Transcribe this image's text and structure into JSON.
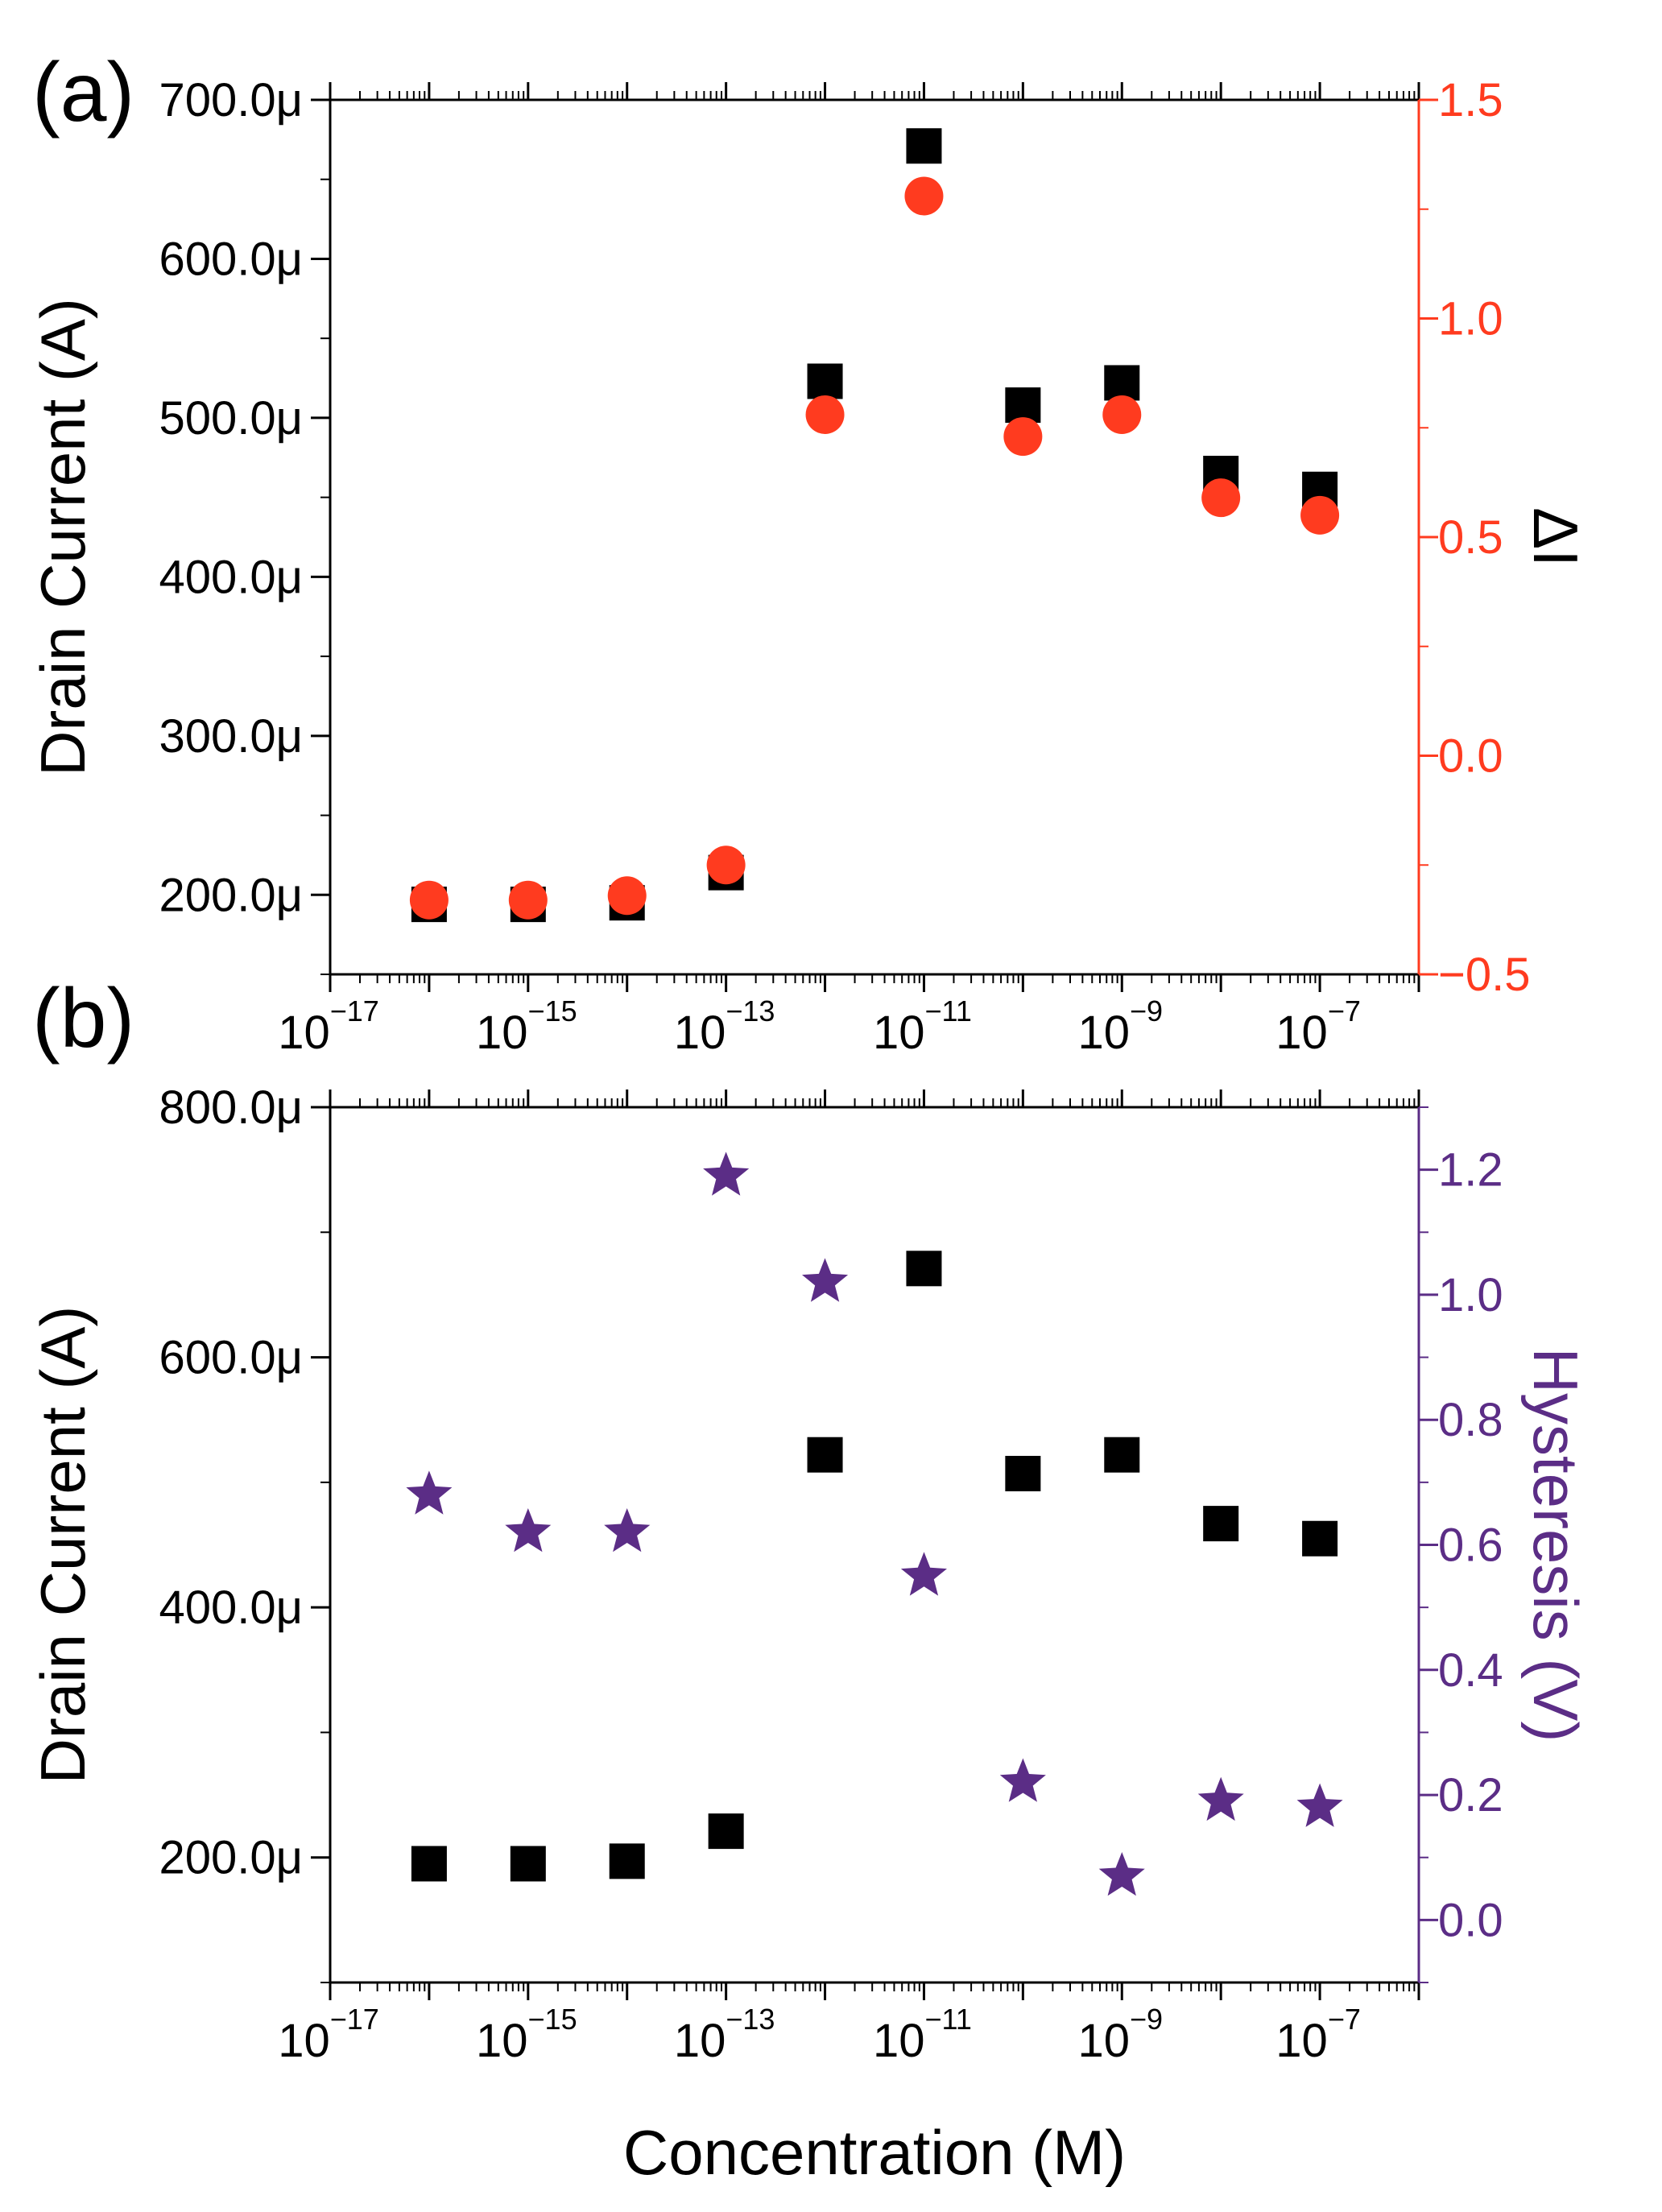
{
  "chart_data": [
    {
      "type": "scatter",
      "panel_label": "(a)",
      "xscale": "log",
      "xlim_exponent": [
        -17,
        -6
      ],
      "xtick_base": "10",
      "xtick_exponents": [
        "−17",
        "−15",
        "−13",
        "−11",
        "−9",
        "−7"
      ],
      "ylabel": "Drain Current (A)",
      "ylim": [
        150,
        700
      ],
      "yticks": [
        "200.0μ",
        "300.0μ",
        "400.0μ",
        "500.0μ",
        "600.0μ",
        "700.0μ"
      ],
      "ytick_values": [
        200,
        300,
        400,
        500,
        600,
        700
      ],
      "y2label": "ΔI",
      "y2lim": [
        -0.5,
        1.5
      ],
      "y2ticks": [
        "−0.5",
        "0.0",
        "0.5",
        "1.0",
        "1.5"
      ],
      "y2tick_values": [
        -0.5,
        0.0,
        0.5,
        1.0,
        1.5
      ],
      "y2color": "#ff3b1f",
      "series": [
        {
          "name": "Drain Current",
          "axis": "left",
          "marker": "square",
          "color": "#000000",
          "x_exponent": [
            -16,
            -15,
            -14,
            -13,
            -12,
            -11,
            -10,
            -9,
            -8,
            -7
          ],
          "values": [
            194,
            194,
            195,
            214,
            523,
            671,
            508,
            522,
            465,
            455
          ]
        },
        {
          "name": "ΔI",
          "axis": "right",
          "marker": "circle",
          "color": "#ff3b1f",
          "x_exponent": [
            -16,
            -15,
            -14,
            -13,
            -12,
            -11,
            -10,
            -9,
            -8,
            -7
          ],
          "values": [
            -0.33,
            -0.33,
            -0.32,
            -0.25,
            0.78,
            1.28,
            0.73,
            0.78,
            0.59,
            0.55
          ]
        }
      ]
    },
    {
      "type": "scatter",
      "panel_label": "(b)",
      "xscale": "log",
      "xlim_exponent": [
        -17,
        -6
      ],
      "xtick_base": "10",
      "xtick_exponents": [
        "−17",
        "−15",
        "−13",
        "−11",
        "−9",
        "−7"
      ],
      "xlabel": "Concentration (M)",
      "ylabel": "Drain Current (A)",
      "ylim": [
        100,
        800
      ],
      "yticks": [
        "200.0μ",
        "400.0μ",
        "600.0μ",
        "800.0μ"
      ],
      "ytick_values": [
        200,
        400,
        600,
        800
      ],
      "y2label": "Hysteresis (V)",
      "y2lim": [
        -0.1,
        1.3
      ],
      "y2ticks": [
        "0.0",
        "0.2",
        "0.4",
        "0.6",
        "0.8",
        "1.0",
        "1.2"
      ],
      "y2tick_values": [
        0.0,
        0.2,
        0.4,
        0.6,
        0.8,
        1.0,
        1.2
      ],
      "y2color": "#5b2d86",
      "series": [
        {
          "name": "Drain Current",
          "axis": "left",
          "marker": "square",
          "color": "#000000",
          "x_exponent": [
            -16,
            -15,
            -14,
            -13,
            -12,
            -11,
            -10,
            -9,
            -8,
            -7
          ],
          "values": [
            195,
            195,
            197,
            221,
            522,
            671,
            507,
            522,
            467,
            455
          ]
        },
        {
          "name": "Hysteresis",
          "axis": "right",
          "marker": "star",
          "color": "#5b2d86",
          "x_exponent": [
            -16,
            -15,
            -14,
            -13,
            -12,
            -11,
            -10,
            -9,
            -8,
            -7
          ],
          "values": [
            0.68,
            0.62,
            0.62,
            1.19,
            1.02,
            0.55,
            0.22,
            0.07,
            0.19,
            0.18
          ]
        }
      ]
    }
  ]
}
